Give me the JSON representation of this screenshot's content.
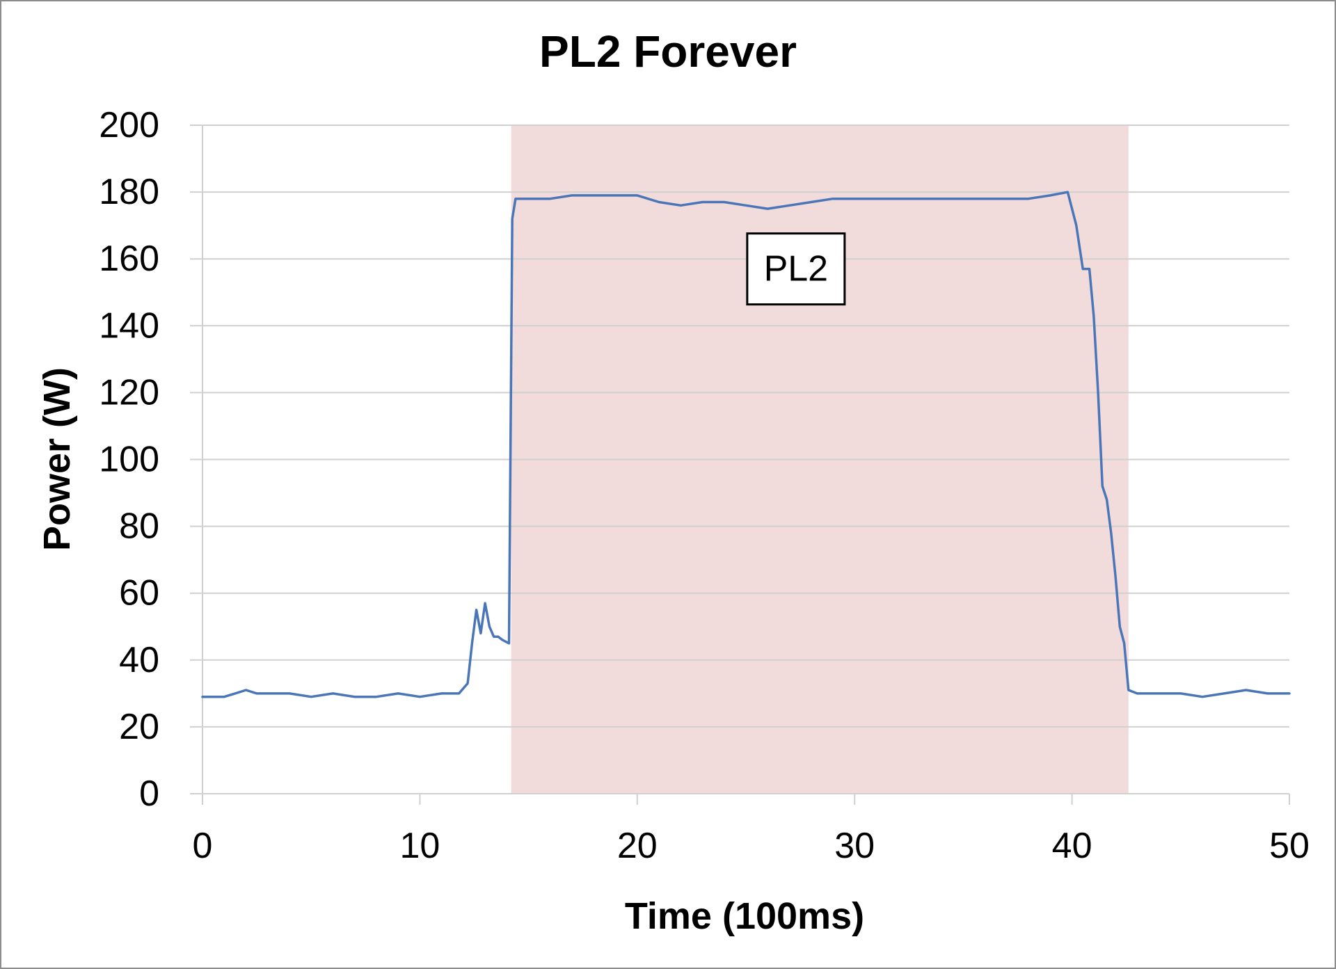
{
  "chart_data": {
    "type": "line",
    "title": "PL2 Forever",
    "xlabel": "Time (100ms)",
    "ylabel": "Power (W)",
    "xlim": [
      0,
      50
    ],
    "ylim": [
      0,
      200
    ],
    "x_ticks": [
      0,
      10,
      20,
      30,
      40,
      50
    ],
    "y_ticks": [
      0,
      20,
      40,
      60,
      80,
      100,
      120,
      140,
      160,
      180,
      200
    ],
    "grid": "horizontal",
    "legend": "none",
    "colors": {
      "line": "#4a76b8",
      "shaded_region": "#f2dcdb",
      "grid": "#d0d0d0",
      "frame": "#8c8c8c"
    },
    "shaded_region": {
      "x_start": 14.2,
      "x_end": 42.6
    },
    "annotation": {
      "text": "PL2",
      "x": 27.3,
      "y": 157
    },
    "series": [
      {
        "x": [
          0,
          0.5,
          1,
          1.5,
          2,
          2.5,
          3,
          4,
          5,
          6,
          7,
          8,
          9,
          10,
          11,
          11.8,
          12.2,
          12.4,
          12.6,
          12.8,
          13.0,
          13.2,
          13.4,
          13.6,
          13.8,
          14.1,
          14.25,
          14.4,
          14.7,
          15,
          16,
          17,
          18,
          19,
          20,
          21,
          22,
          23,
          24,
          25,
          26,
          27,
          28,
          29,
          30,
          31,
          32,
          33,
          34,
          35,
          36,
          37,
          38,
          39,
          39.8,
          40.2,
          40.5,
          40.8,
          41.0,
          41.2,
          41.4,
          41.6,
          41.8,
          42.0,
          42.2,
          42.4,
          42.6,
          43,
          44,
          45,
          46,
          47,
          48,
          49,
          50
        ],
        "y": [
          29,
          29,
          29,
          30,
          31,
          30,
          30,
          30,
          29,
          30,
          29,
          29,
          30,
          29,
          30,
          30,
          33,
          45,
          55,
          48,
          57,
          50,
          47,
          47,
          46,
          45,
          172,
          178,
          178,
          178,
          178,
          179,
          179,
          179,
          179,
          177,
          176,
          177,
          177,
          176,
          175,
          176,
          177,
          178,
          178,
          178,
          178,
          178,
          178,
          178,
          178,
          178,
          178,
          179,
          180,
          170,
          157,
          157,
          143,
          120,
          92,
          88,
          78,
          65,
          50,
          45,
          31,
          30,
          30,
          30,
          29,
          30,
          31,
          30,
          30
        ]
      }
    ]
  }
}
